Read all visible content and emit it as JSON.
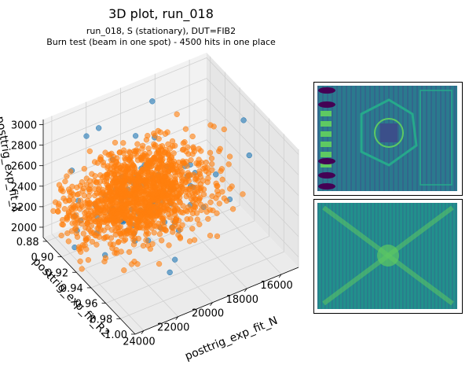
{
  "chart_data": {
    "type": "scatter",
    "title": "3D plot, run_018",
    "subtitle_lines": [
      "run_018, S (stationary), DUT=FIB2",
      "Burn test (beam in one spot) - 4500 hits in one place"
    ],
    "axes": {
      "x": {
        "label": "posttrig_exp_fit_N",
        "range": [
          15000,
          24500
        ],
        "ticks": [
          "16000",
          "18000",
          "20000",
          "22000",
          "24000"
        ],
        "tick_values": [
          16000,
          18000,
          20000,
          22000,
          24000
        ]
      },
      "y": {
        "label": "posttrig_exp_fit_R2",
        "range": [
          0.875,
          1.0
        ],
        "ticks": [
          "0.88",
          "0.90",
          "0.92",
          "0.94",
          "0.96",
          "0.98",
          "1.00"
        ],
        "tick_values": [
          0.88,
          0.9,
          0.92,
          0.94,
          0.96,
          0.98,
          1.0
        ]
      },
      "z": {
        "label": "posttrig_exp_fit_λ",
        "range": [
          1900,
          3050
        ],
        "ticks": [
          "2000",
          "2200",
          "2400",
          "2600",
          "2800",
          "3000"
        ],
        "tick_values": [
          2000,
          2200,
          2400,
          2600,
          2800,
          3000
        ]
      }
    },
    "grid": true,
    "series": [
      {
        "color": "#1f77b4",
        "cluster_estimate": {
          "N_center": 20000,
          "N_spread": 1800,
          "R2_center": 0.91,
          "R2_spread": 0.02,
          "lambda_center": 2250,
          "lambda_spread": 160,
          "count_shown": 90
        },
        "outlier_points": [
          {
            "N": 15200,
            "R2": 0.93,
            "lambda": 2820
          },
          {
            "N": 15300,
            "R2": 0.94,
            "lambda": 2560
          },
          {
            "N": 16600,
            "R2": 0.925,
            "lambda": 2350
          },
          {
            "N": 18800,
            "R2": 0.89,
            "lambda": 2950
          },
          {
            "N": 21700,
            "R2": 0.885,
            "lambda": 2850
          },
          {
            "N": 23900,
            "R2": 0.9,
            "lambda": 2700
          },
          {
            "N": 21200,
            "R2": 0.97,
            "lambda": 2050
          }
        ]
      },
      {
        "color": "#ff7f0e",
        "cluster_estimate": {
          "N_center": 20200,
          "N_spread": 1800,
          "R2_center": 0.905,
          "R2_spread": 0.018,
          "lambda_center": 2250,
          "lambda_spread": 150,
          "count_shown": 1400
        }
      }
    ]
  },
  "insets": [
    {
      "kind": "image",
      "name": "chip-layout",
      "colors": [
        "#2a7a8e",
        "#3b4f8a",
        "#5ec962",
        "#440154",
        "#26a98b"
      ]
    },
    {
      "kind": "image",
      "name": "beam-burn-map",
      "colors": [
        "#21918c",
        "#31688e",
        "#5ec962",
        "#3b528b"
      ]
    }
  ]
}
